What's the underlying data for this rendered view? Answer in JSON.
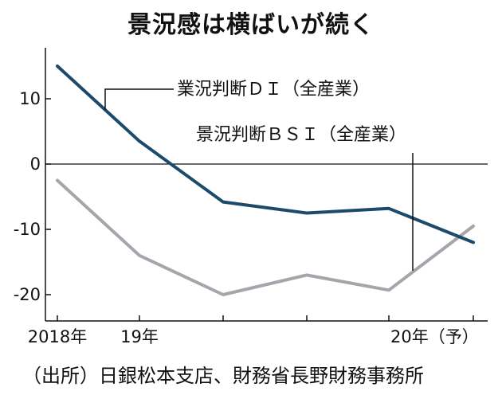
{
  "title": "景況感は横ばいが続く",
  "source": "（出所）日銀松本支店、財務省長野財務事務所",
  "chart_data": {
    "type": "line",
    "ylim": [
      -22,
      18
    ],
    "yticks": [
      10,
      0,
      -10,
      -20
    ],
    "ytick_labels": [
      "10",
      "0",
      "-10",
      "-20"
    ],
    "xtick_labels": [
      "2018年",
      "19年",
      "20年（予）"
    ],
    "series": [
      {
        "name": "業況判断ＤＩ（全産業）",
        "color": "#1b4a6b",
        "values": [
          15,
          3.5,
          -5.8,
          -7.5,
          -6.8,
          -12
        ]
      },
      {
        "name": "景況判断ＢＳＩ（全産業）",
        "color": "#a7a4ac",
        "values": [
          -2.5,
          -14,
          -20,
          -17,
          -19.3,
          -9.5
        ]
      }
    ]
  }
}
